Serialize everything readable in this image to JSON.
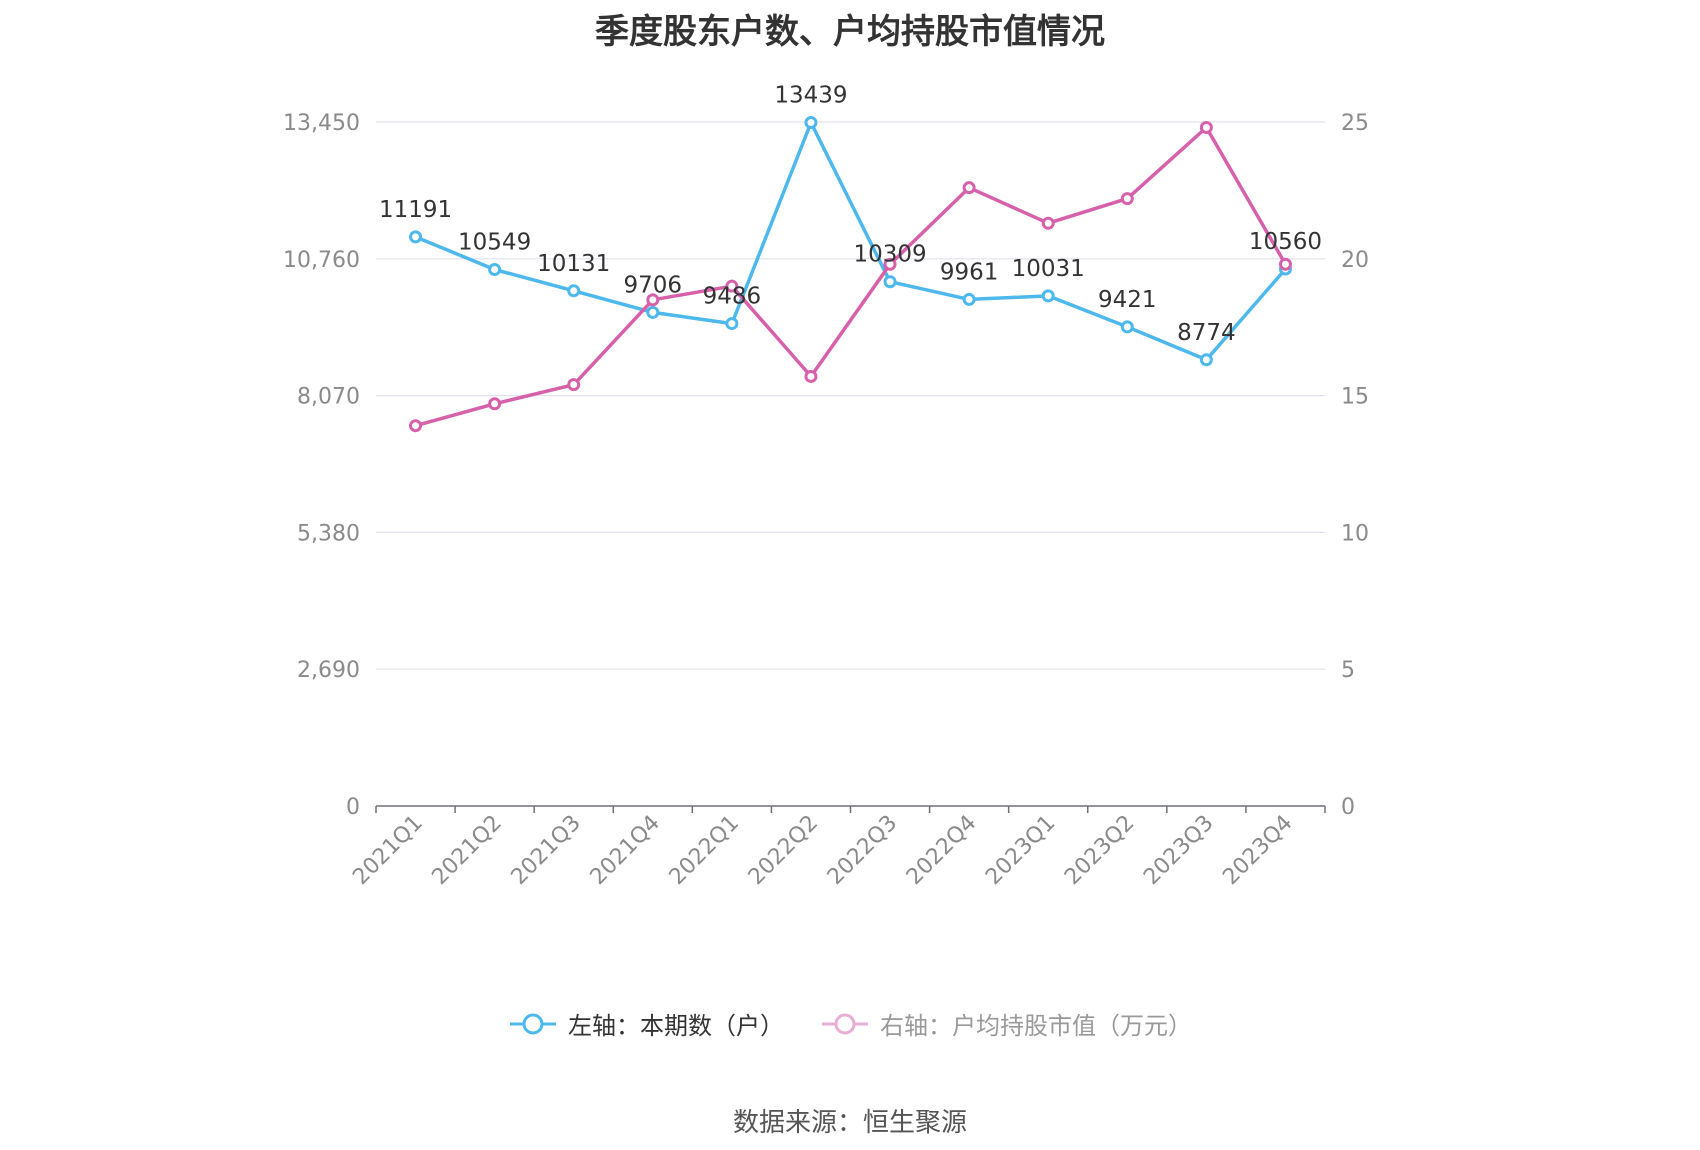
{
  "chart_data": {
    "type": "line",
    "title": "季度股东户数、户均持股市值情况",
    "categories": [
      "2021Q1",
      "2021Q2",
      "2021Q3",
      "2021Q4",
      "2022Q1",
      "2022Q2",
      "2022Q3",
      "2022Q4",
      "2023Q1",
      "2023Q2",
      "2023Q3",
      "2023Q4"
    ],
    "left_axis": {
      "ticks": [
        "0",
        "2,690",
        "5,380",
        "8,070",
        "10,760",
        "13,450"
      ],
      "ylim": [
        0,
        13450
      ]
    },
    "right_axis": {
      "ticks": [
        "0",
        "5",
        "10",
        "15",
        "20",
        "25"
      ],
      "ylim": [
        0,
        25
      ]
    },
    "series": [
      {
        "name": "左轴：本期数（户）",
        "axis": "left",
        "color": "#4db8ec",
        "values": [
          11191,
          10549,
          10131,
          9706,
          9486,
          13439,
          10309,
          9961,
          10031,
          9421,
          8774,
          10560
        ],
        "labels": [
          "11191",
          "10549",
          "10131",
          "9706",
          "9486",
          "13439",
          "10309",
          "9961",
          "10031",
          "9421",
          "8774",
          "10560"
        ]
      },
      {
        "name": "右轴：户均持股市值（万元）",
        "axis": "right",
        "color": "#d660aa",
        "values": [
          13.9,
          14.7,
          15.4,
          18.5,
          19.0,
          15.7,
          19.8,
          22.6,
          21.3,
          22.2,
          24.8,
          19.8
        ]
      }
    ],
    "grid": true,
    "legend_position": "bottom-center"
  },
  "source_note": "数据来源：恒生聚源"
}
